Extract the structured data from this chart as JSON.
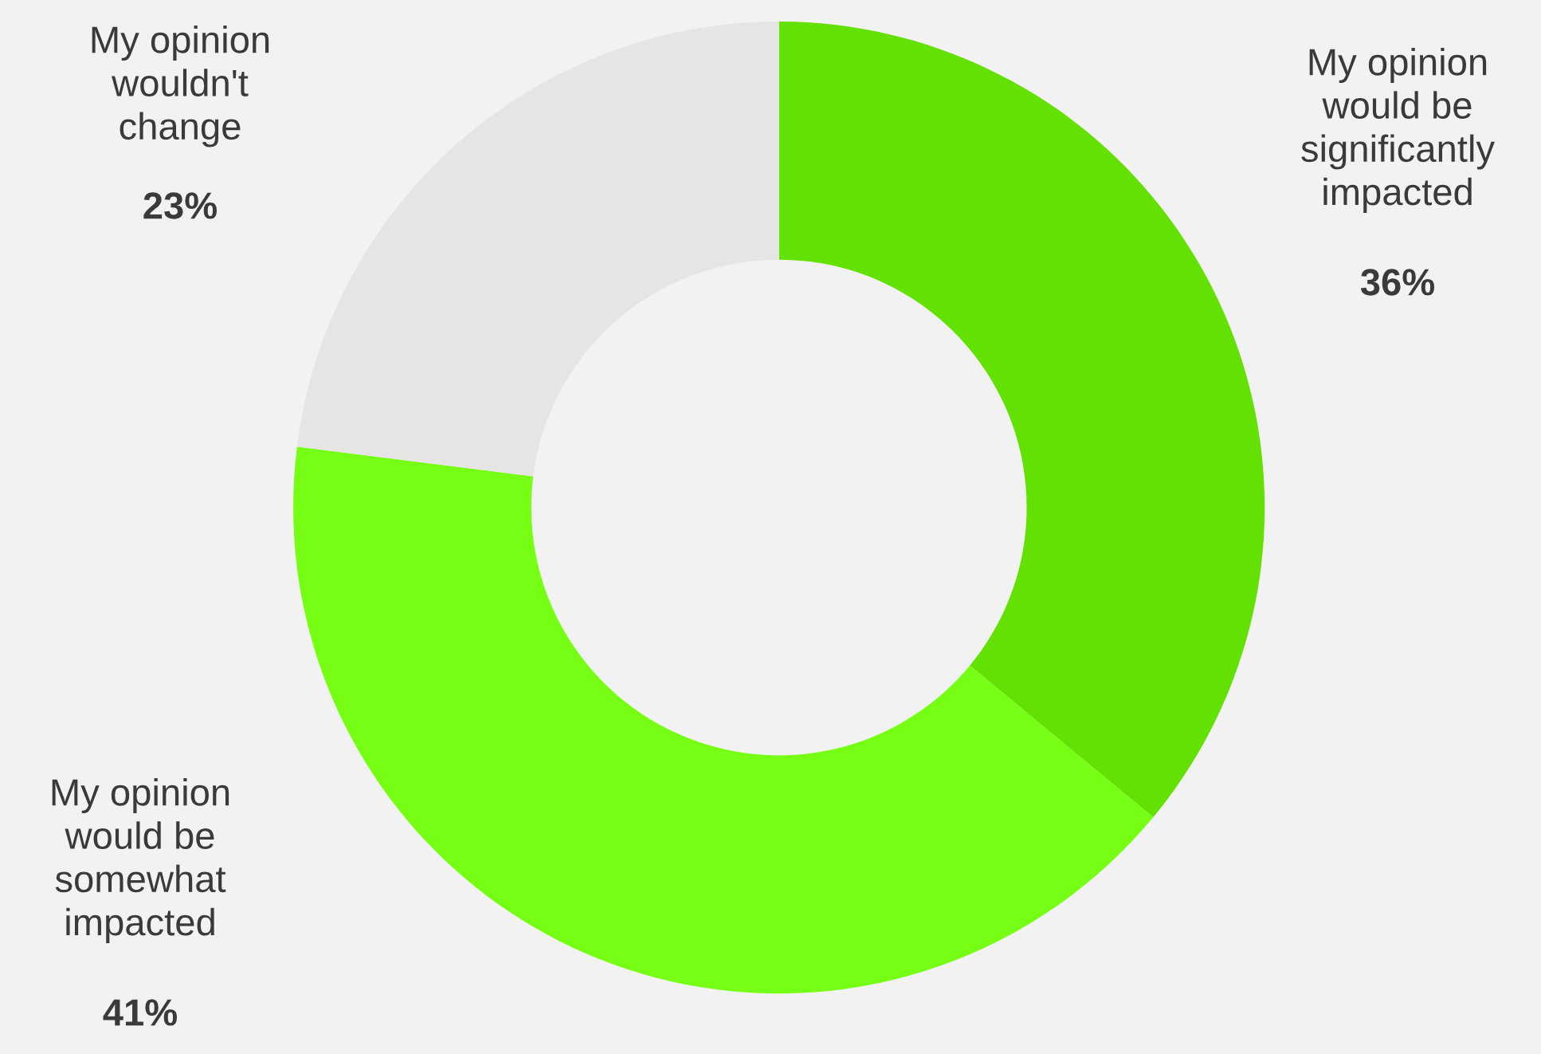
{
  "chart_data": {
    "type": "donut",
    "categories": [
      "My opinion\nwould be\nsignificantly\nimpacted",
      "My opinion\nwould be\nsomewhat\nimpacted",
      "My opinion\nwouldn't\nchange"
    ],
    "values": [
      36,
      41,
      23
    ],
    "value_labels": [
      "36%",
      "41%",
      "23%"
    ],
    "colors": [
      "#63e102",
      "#77fe15",
      "#e6e5e3"
    ]
  }
}
